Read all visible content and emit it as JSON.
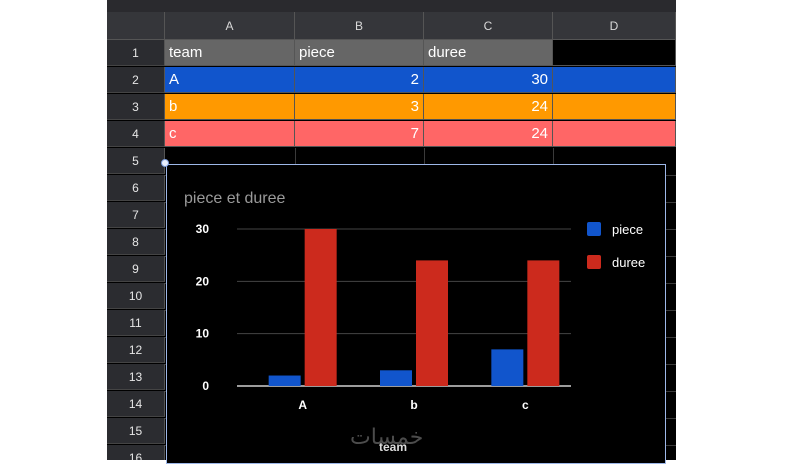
{
  "columns": [
    "A",
    "B",
    "C",
    "D"
  ],
  "rows": [
    "1",
    "2",
    "3",
    "4",
    "5",
    "6",
    "7",
    "8",
    "9",
    "10",
    "11",
    "12",
    "13",
    "14",
    "15",
    "16"
  ],
  "table": {
    "header": [
      "team",
      "piece",
      "duree"
    ],
    "data": [
      {
        "team": "A",
        "piece": "2",
        "duree": "30",
        "color": "#1155cc"
      },
      {
        "team": "b",
        "piece": "3",
        "duree": "24",
        "color": "#ff9900"
      },
      {
        "team": "c",
        "piece": "7",
        "duree": "24",
        "color": "#ff6666"
      }
    ],
    "header_color": "#666666"
  },
  "chart_data": {
    "type": "bar",
    "title": "piece et duree",
    "xlabel": "team",
    "ylabel": "",
    "categories": [
      "A",
      "b",
      "c"
    ],
    "series": [
      {
        "name": "piece",
        "values": [
          2,
          3,
          7
        ],
        "color": "#1155cc"
      },
      {
        "name": "duree",
        "values": [
          30,
          24,
          24
        ],
        "color": "#cc2a1d"
      }
    ],
    "ylim": [
      0,
      30
    ],
    "yticks": [
      0,
      10,
      20,
      30
    ],
    "grid": true,
    "legend": "right"
  },
  "watermark": "خمسات"
}
